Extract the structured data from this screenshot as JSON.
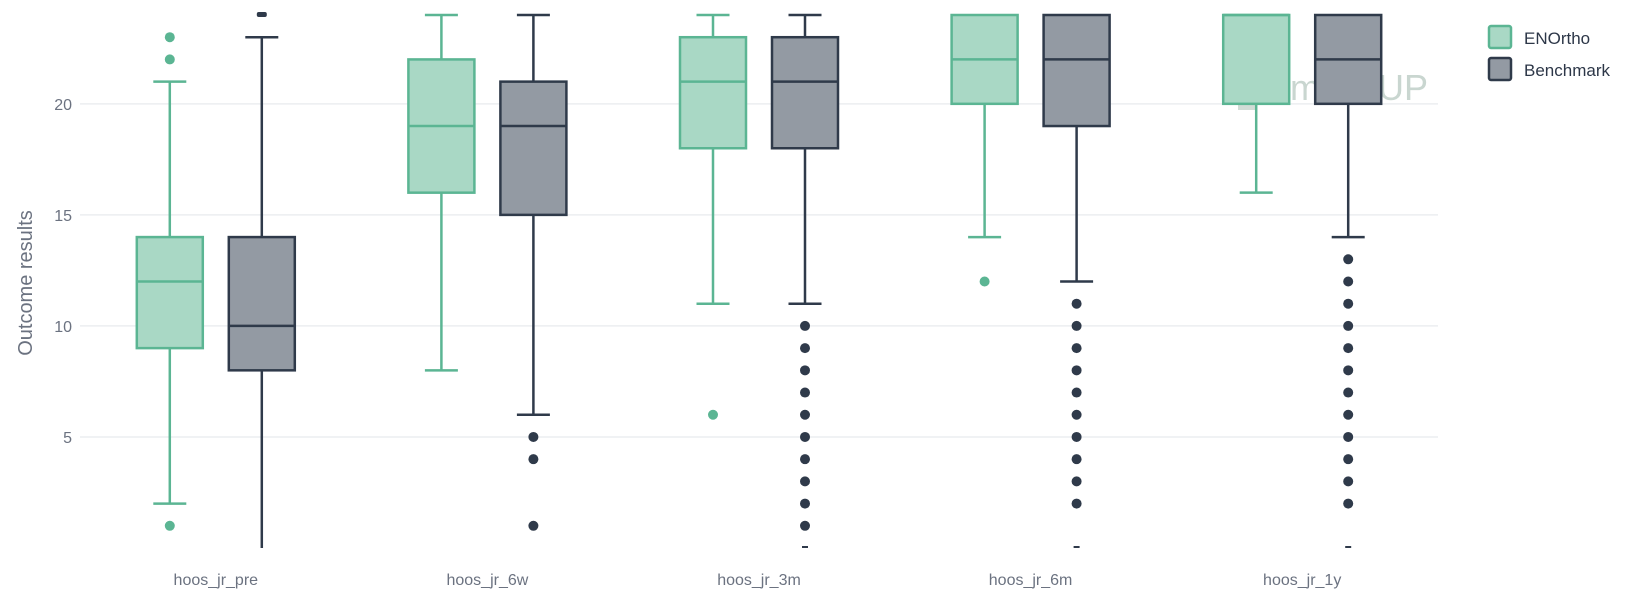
{
  "chart_data": {
    "type": "box",
    "ylabel": "Outcome results",
    "xlabel": "",
    "ylim": [
      0,
      24
    ],
    "yticks": [
      5,
      10,
      15,
      20
    ],
    "grid": true,
    "legend_position": "top-right",
    "categories": [
      "hoos_jr_pre",
      "hoos_jr_6w",
      "hoos_jr_3m",
      "hoos_jr_6m",
      "hoos_jr_1y"
    ],
    "watermark": "moveUP",
    "series": [
      {
        "name": "ENOrtho",
        "color": "#5bb593",
        "fill": "#a9d8c5",
        "boxes": [
          {
            "min": 2,
            "q1": 9,
            "median": 12,
            "q3": 14,
            "max": 21,
            "outliers": [
              1,
              22,
              23
            ]
          },
          {
            "min": 8,
            "q1": 16,
            "median": 19,
            "q3": 22,
            "max": 24,
            "outliers": []
          },
          {
            "min": 11,
            "q1": 18,
            "median": 21,
            "q3": 23,
            "max": 24,
            "outliers": [
              6
            ]
          },
          {
            "min": 14,
            "q1": 20,
            "median": 22,
            "q3": 24,
            "max": 24,
            "outliers": [
              12
            ]
          },
          {
            "min": 16,
            "q1": 20,
            "median": 24,
            "q3": 24,
            "max": 24,
            "outliers": []
          }
        ]
      },
      {
        "name": "Benchmark",
        "color": "#2f3a4a",
        "fill": "#939aa3",
        "boxes": [
          {
            "min": 0,
            "q1": 8,
            "median": 10,
            "q3": 14,
            "max": 23,
            "outliers": [
              24
            ]
          },
          {
            "min": 6,
            "q1": 15,
            "median": 19,
            "q3": 21,
            "max": 24,
            "outliers": [
              1,
              4,
              5
            ]
          },
          {
            "min": 11,
            "q1": 18,
            "median": 21,
            "q3": 23,
            "max": 24,
            "outliers": [
              0,
              1,
              2,
              3,
              4,
              5,
              6,
              7,
              8,
              9,
              10
            ]
          },
          {
            "min": 12,
            "q1": 19,
            "median": 22,
            "q3": 24,
            "max": 24,
            "outliers": [
              0,
              2,
              3,
              4,
              5,
              6,
              7,
              8,
              9,
              10,
              11
            ]
          },
          {
            "min": 14,
            "q1": 20,
            "median": 22,
            "q3": 24,
            "max": 24,
            "outliers": [
              0,
              2,
              3,
              4,
              5,
              6,
              7,
              8,
              9,
              10,
              11,
              12,
              13
            ]
          }
        ]
      }
    ]
  }
}
